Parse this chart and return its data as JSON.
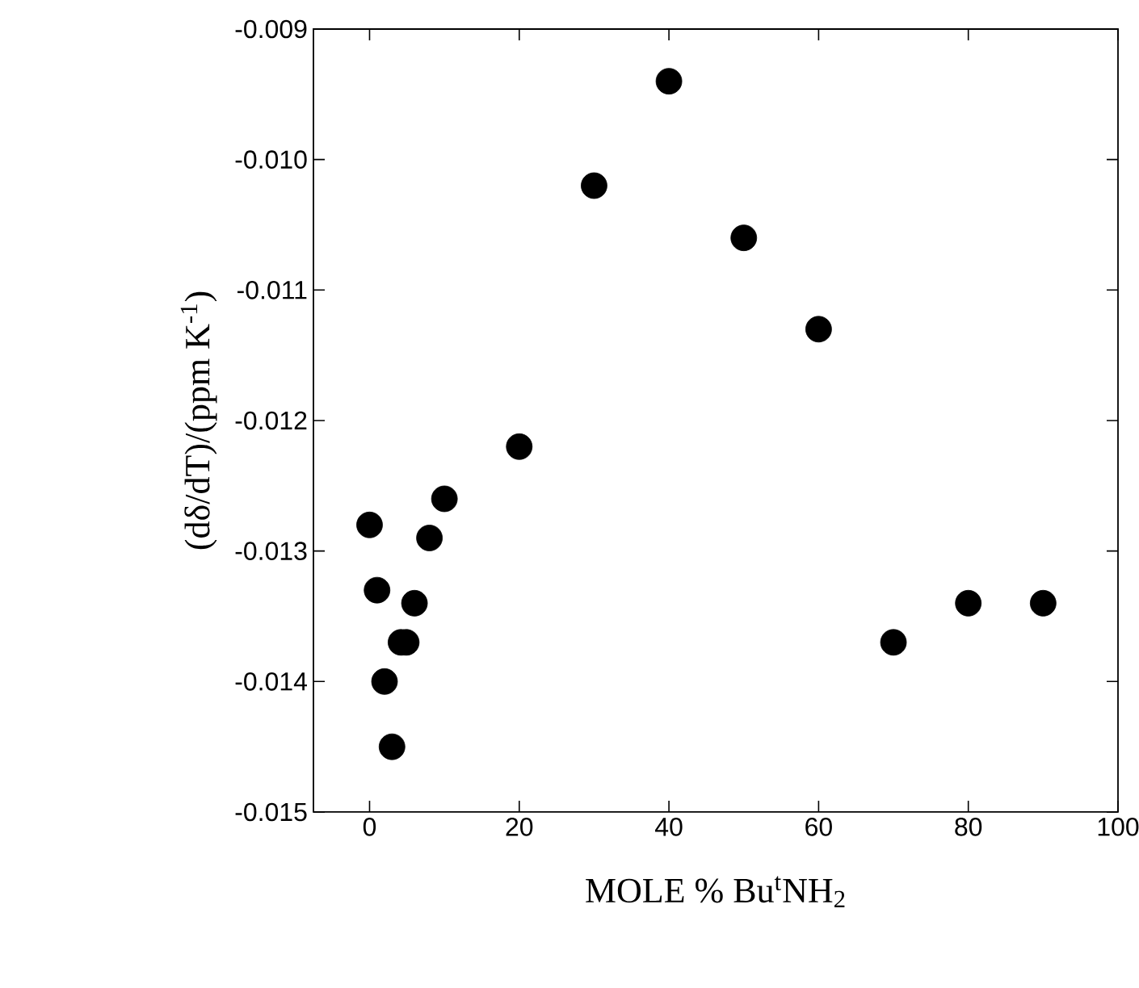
{
  "chart_data": {
    "type": "scatter",
    "xlabel": "MOLE % Bu$^{t}$NH$_{2}$",
    "ylabel": "(dδ/dT)/(ppm K$^{-1}$)",
    "x": [
      0,
      1,
      2,
      3,
      4.2,
      4.9,
      6,
      8,
      10,
      20,
      30,
      40,
      50,
      60,
      70,
      80,
      90
    ],
    "values": [
      -0.0128,
      -0.0133,
      -0.014,
      -0.0145,
      -0.0137,
      -0.0137,
      -0.0134,
      -0.0129,
      -0.0126,
      -0.0122,
      -0.0102,
      -0.0094,
      -0.0106,
      -0.0113,
      -0.0137,
      -0.0134,
      -0.0134
    ],
    "color": "#000000",
    "marker": "circle",
    "grid": false,
    "xlim": [
      -7.5,
      100
    ],
    "xticks": [
      0,
      20,
      40,
      60,
      80,
      100
    ],
    "ylim": [
      -0.015,
      -0.009
    ],
    "yticks": [
      {
        "value": -0.015,
        "label": "-0.015"
      },
      {
        "value": -0.014,
        "label": "-0.014"
      },
      {
        "value": -0.013,
        "label": "-0.013"
      },
      {
        "value": -0.012,
        "label": "-0.012"
      },
      {
        "value": -0.011,
        "label": "-0.011"
      },
      {
        "value": -0.01,
        "label": "-0.010"
      },
      {
        "value": -0.009,
        "label": "-0.009"
      }
    ]
  }
}
